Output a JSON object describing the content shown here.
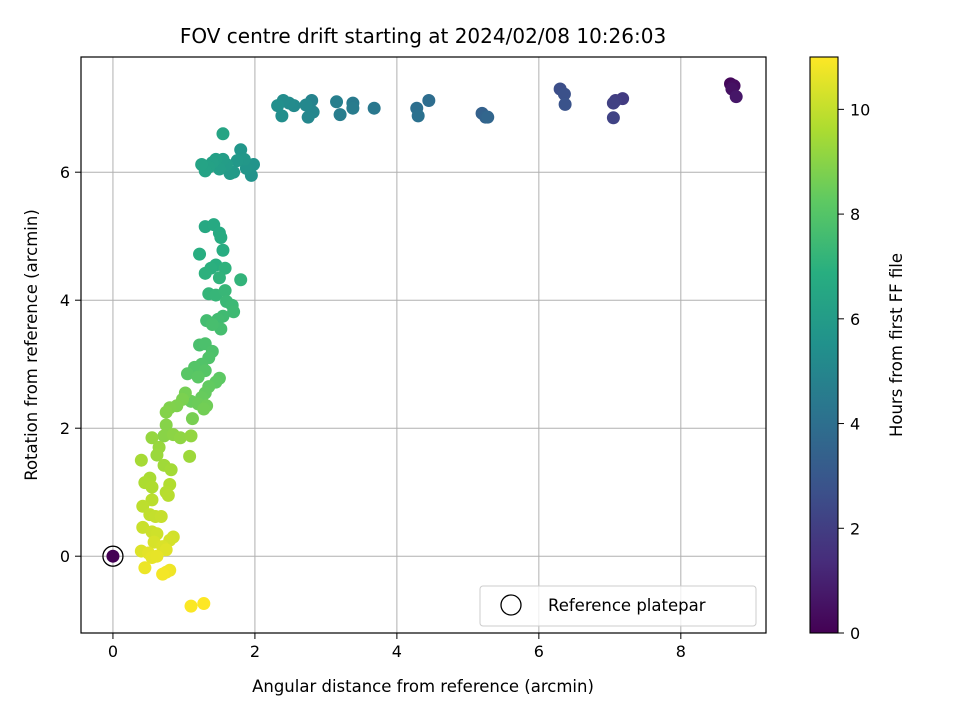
{
  "chart_data": {
    "type": "scatter",
    "title": "FOV centre drift starting at 2024/02/08 10:26:03",
    "xlabel": "Angular distance from reference (arcmin)",
    "ylabel": "Rotation from reference (arcmin)",
    "xlim": [
      -0.45,
      9.2
    ],
    "ylim": [
      -1.2,
      7.8
    ],
    "xticks": [
      0,
      2,
      4,
      6,
      8
    ],
    "yticks": [
      0,
      2,
      4,
      6
    ],
    "grid": true,
    "legend": {
      "placement": "lower-right",
      "entries": [
        "Reference platepar"
      ]
    },
    "reference_point": {
      "x": 0,
      "y": 0
    },
    "colorbar": {
      "label": "Hours from first FF file",
      "range": [
        0,
        11
      ],
      "ticks": [
        0,
        2,
        4,
        6,
        8,
        10
      ],
      "colormap": "viridis"
    },
    "points": [
      {
        "x": 0.0,
        "y": 0.0,
        "t": 0.0
      },
      {
        "x": 8.7,
        "y": 7.38,
        "t": 0.2
      },
      {
        "x": 8.75,
        "y": 7.35,
        "t": 0.35
      },
      {
        "x": 8.72,
        "y": 7.3,
        "t": 0.5
      },
      {
        "x": 8.78,
        "y": 7.18,
        "t": 0.7
      },
      {
        "x": 7.18,
        "y": 7.15,
        "t": 1.9
      },
      {
        "x": 7.08,
        "y": 7.12,
        "t": 2.0
      },
      {
        "x": 7.05,
        "y": 7.08,
        "t": 2.1
      },
      {
        "x": 7.05,
        "y": 6.85,
        "t": 2.2
      },
      {
        "x": 6.3,
        "y": 7.3,
        "t": 2.6
      },
      {
        "x": 6.36,
        "y": 7.22,
        "t": 2.7
      },
      {
        "x": 6.37,
        "y": 7.06,
        "t": 2.8
      },
      {
        "x": 5.2,
        "y": 6.92,
        "t": 3.4
      },
      {
        "x": 5.25,
        "y": 6.86,
        "t": 3.5
      },
      {
        "x": 5.28,
        "y": 6.86,
        "t": 3.6
      },
      {
        "x": 4.45,
        "y": 7.12,
        "t": 3.9
      },
      {
        "x": 4.28,
        "y": 7.0,
        "t": 4.0
      },
      {
        "x": 4.3,
        "y": 6.88,
        "t": 4.1
      },
      {
        "x": 3.68,
        "y": 7.0,
        "t": 4.4
      },
      {
        "x": 3.38,
        "y": 7.08,
        "t": 4.5
      },
      {
        "x": 3.38,
        "y": 7.0,
        "t": 4.55
      },
      {
        "x": 3.2,
        "y": 6.9,
        "t": 4.6
      },
      {
        "x": 3.15,
        "y": 7.1,
        "t": 4.7
      },
      {
        "x": 2.8,
        "y": 7.12,
        "t": 4.9
      },
      {
        "x": 2.82,
        "y": 6.94,
        "t": 5.0
      },
      {
        "x": 2.75,
        "y": 6.86,
        "t": 5.05
      },
      {
        "x": 2.72,
        "y": 7.05,
        "t": 5.1
      },
      {
        "x": 2.55,
        "y": 7.04,
        "t": 5.2
      },
      {
        "x": 2.48,
        "y": 7.08,
        "t": 5.25
      },
      {
        "x": 2.4,
        "y": 7.12,
        "t": 5.3
      },
      {
        "x": 2.38,
        "y": 6.88,
        "t": 5.35
      },
      {
        "x": 2.32,
        "y": 7.04,
        "t": 5.4
      },
      {
        "x": 1.95,
        "y": 5.95,
        "t": 5.6
      },
      {
        "x": 1.98,
        "y": 6.12,
        "t": 5.65
      },
      {
        "x": 1.88,
        "y": 6.06,
        "t": 5.7
      },
      {
        "x": 1.8,
        "y": 6.35,
        "t": 5.75
      },
      {
        "x": 1.85,
        "y": 6.2,
        "t": 5.8
      },
      {
        "x": 1.75,
        "y": 6.18,
        "t": 5.85
      },
      {
        "x": 1.7,
        "y": 6.0,
        "t": 5.9
      },
      {
        "x": 1.65,
        "y": 5.98,
        "t": 5.95
      },
      {
        "x": 1.6,
        "y": 6.12,
        "t": 6.0
      },
      {
        "x": 1.55,
        "y": 6.2,
        "t": 6.05
      },
      {
        "x": 1.5,
        "y": 6.05,
        "t": 6.1
      },
      {
        "x": 1.45,
        "y": 6.2,
        "t": 6.15
      },
      {
        "x": 1.4,
        "y": 6.15,
        "t": 6.2
      },
      {
        "x": 1.35,
        "y": 6.08,
        "t": 6.25
      },
      {
        "x": 1.3,
        "y": 6.02,
        "t": 6.3
      },
      {
        "x": 1.25,
        "y": 6.12,
        "t": 6.35
      },
      {
        "x": 1.55,
        "y": 6.6,
        "t": 6.4
      },
      {
        "x": 1.3,
        "y": 5.15,
        "t": 6.6
      },
      {
        "x": 1.42,
        "y": 5.18,
        "t": 6.65
      },
      {
        "x": 1.5,
        "y": 5.05,
        "t": 6.7
      },
      {
        "x": 1.52,
        "y": 4.98,
        "t": 6.75
      },
      {
        "x": 1.55,
        "y": 4.78,
        "t": 6.8
      },
      {
        "x": 1.22,
        "y": 4.72,
        "t": 6.85
      },
      {
        "x": 1.45,
        "y": 4.55,
        "t": 6.9
      },
      {
        "x": 1.38,
        "y": 4.5,
        "t": 6.95
      },
      {
        "x": 1.3,
        "y": 4.42,
        "t": 7.0
      },
      {
        "x": 1.58,
        "y": 4.5,
        "t": 7.05
      },
      {
        "x": 1.5,
        "y": 4.35,
        "t": 7.1
      },
      {
        "x": 1.8,
        "y": 4.32,
        "t": 7.15
      },
      {
        "x": 1.35,
        "y": 4.1,
        "t": 7.2
      },
      {
        "x": 1.45,
        "y": 4.08,
        "t": 7.25
      },
      {
        "x": 1.58,
        "y": 4.15,
        "t": 7.3
      },
      {
        "x": 1.6,
        "y": 3.98,
        "t": 7.35
      },
      {
        "x": 1.68,
        "y": 3.92,
        "t": 7.4
      },
      {
        "x": 1.7,
        "y": 3.82,
        "t": 7.45
      },
      {
        "x": 1.55,
        "y": 3.75,
        "t": 7.5
      },
      {
        "x": 1.48,
        "y": 3.7,
        "t": 7.55
      },
      {
        "x": 1.32,
        "y": 3.68,
        "t": 7.6
      },
      {
        "x": 1.52,
        "y": 3.55,
        "t": 7.65
      },
      {
        "x": 1.4,
        "y": 3.62,
        "t": 7.7
      },
      {
        "x": 1.22,
        "y": 3.3,
        "t": 7.75
      },
      {
        "x": 1.3,
        "y": 3.32,
        "t": 7.8
      },
      {
        "x": 1.4,
        "y": 3.2,
        "t": 7.85
      },
      {
        "x": 1.35,
        "y": 3.1,
        "t": 7.9
      },
      {
        "x": 1.25,
        "y": 3.0,
        "t": 7.95
      },
      {
        "x": 1.15,
        "y": 2.95,
        "t": 8.0
      },
      {
        "x": 1.3,
        "y": 2.9,
        "t": 8.05
      },
      {
        "x": 1.05,
        "y": 2.85,
        "t": 8.1
      },
      {
        "x": 1.2,
        "y": 2.8,
        "t": 8.15
      },
      {
        "x": 1.5,
        "y": 2.78,
        "t": 8.2
      },
      {
        "x": 1.45,
        "y": 2.72,
        "t": 8.25
      },
      {
        "x": 1.35,
        "y": 2.65,
        "t": 8.3
      },
      {
        "x": 1.3,
        "y": 2.55,
        "t": 8.35
      },
      {
        "x": 1.25,
        "y": 2.48,
        "t": 8.4
      },
      {
        "x": 1.1,
        "y": 2.42,
        "t": 8.45
      },
      {
        "x": 1.2,
        "y": 2.38,
        "t": 8.5
      },
      {
        "x": 1.32,
        "y": 2.35,
        "t": 8.55
      },
      {
        "x": 1.28,
        "y": 2.3,
        "t": 8.6
      },
      {
        "x": 1.02,
        "y": 2.55,
        "t": 8.65
      },
      {
        "x": 1.12,
        "y": 2.15,
        "t": 8.7
      },
      {
        "x": 0.98,
        "y": 2.45,
        "t": 8.75
      },
      {
        "x": 0.9,
        "y": 2.35,
        "t": 8.8
      },
      {
        "x": 0.8,
        "y": 2.32,
        "t": 8.85
      },
      {
        "x": 0.75,
        "y": 2.25,
        "t": 8.9
      },
      {
        "x": 0.75,
        "y": 2.05,
        "t": 8.95
      },
      {
        "x": 0.72,
        "y": 1.88,
        "t": 9.0
      },
      {
        "x": 0.85,
        "y": 1.9,
        "t": 9.05
      },
      {
        "x": 0.95,
        "y": 1.85,
        "t": 9.1
      },
      {
        "x": 1.1,
        "y": 1.88,
        "t": 9.15
      },
      {
        "x": 0.55,
        "y": 1.85,
        "t": 9.2
      },
      {
        "x": 0.65,
        "y": 1.7,
        "t": 9.25
      },
      {
        "x": 0.62,
        "y": 1.58,
        "t": 9.3
      },
      {
        "x": 1.08,
        "y": 1.56,
        "t": 9.35
      },
      {
        "x": 0.72,
        "y": 1.42,
        "t": 9.4
      },
      {
        "x": 0.82,
        "y": 1.35,
        "t": 9.45
      },
      {
        "x": 0.4,
        "y": 1.5,
        "t": 9.5
      },
      {
        "x": 0.52,
        "y": 1.22,
        "t": 9.55
      },
      {
        "x": 0.45,
        "y": 1.15,
        "t": 9.6
      },
      {
        "x": 0.55,
        "y": 1.08,
        "t": 9.65
      },
      {
        "x": 0.8,
        "y": 1.12,
        "t": 9.7
      },
      {
        "x": 0.75,
        "y": 1.0,
        "t": 9.75
      },
      {
        "x": 0.78,
        "y": 0.95,
        "t": 9.8
      },
      {
        "x": 0.55,
        "y": 0.88,
        "t": 9.85
      },
      {
        "x": 0.42,
        "y": 0.78,
        "t": 9.9
      },
      {
        "x": 0.52,
        "y": 0.65,
        "t": 9.95
      },
      {
        "x": 0.6,
        "y": 0.62,
        "t": 10.0
      },
      {
        "x": 0.68,
        "y": 0.62,
        "t": 10.05
      },
      {
        "x": 0.42,
        "y": 0.45,
        "t": 10.1
      },
      {
        "x": 0.55,
        "y": 0.38,
        "t": 10.15
      },
      {
        "x": 0.62,
        "y": 0.35,
        "t": 10.2
      },
      {
        "x": 0.85,
        "y": 0.3,
        "t": 10.25
      },
      {
        "x": 0.8,
        "y": 0.25,
        "t": 10.3
      },
      {
        "x": 0.58,
        "y": 0.22,
        "t": 10.35
      },
      {
        "x": 0.7,
        "y": 0.15,
        "t": 10.4
      },
      {
        "x": 0.4,
        "y": 0.08,
        "t": 10.45
      },
      {
        "x": 0.75,
        "y": 0.1,
        "t": 10.5
      },
      {
        "x": 0.5,
        "y": 0.05,
        "t": 10.55
      },
      {
        "x": 0.55,
        "y": -0.02,
        "t": 10.6
      },
      {
        "x": 0.62,
        "y": 0.0,
        "t": 10.62
      },
      {
        "x": 0.45,
        "y": -0.18,
        "t": 10.7
      },
      {
        "x": 0.8,
        "y": -0.22,
        "t": 10.75
      },
      {
        "x": 0.75,
        "y": -0.25,
        "t": 10.8
      },
      {
        "x": 0.7,
        "y": -0.28,
        "t": 10.85
      },
      {
        "x": 1.1,
        "y": -0.78,
        "t": 10.95
      },
      {
        "x": 1.28,
        "y": -0.74,
        "t": 11.0
      }
    ]
  }
}
